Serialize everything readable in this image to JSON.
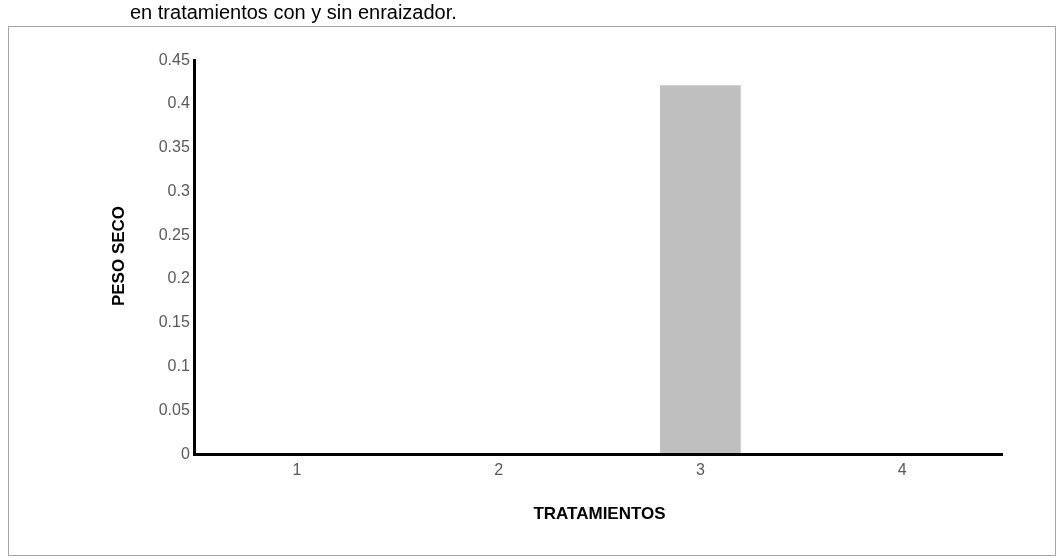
{
  "chart_data": {
    "type": "bar",
    "title": "en tratamientos con y sin enraizador.",
    "xlabel": "TRATAMIENTOS",
    "ylabel": "PESO SECO",
    "categories": [
      "1",
      "2",
      "3",
      "4"
    ],
    "values": [
      0,
      0,
      0.42,
      0
    ],
    "color": "#bfbfbf",
    "ylim": [
      0,
      0.45
    ],
    "yticks": [
      0,
      0.05,
      0.1,
      0.15,
      0.2,
      0.25,
      0.3,
      0.35,
      0.4,
      0.45
    ],
    "grid": false
  }
}
